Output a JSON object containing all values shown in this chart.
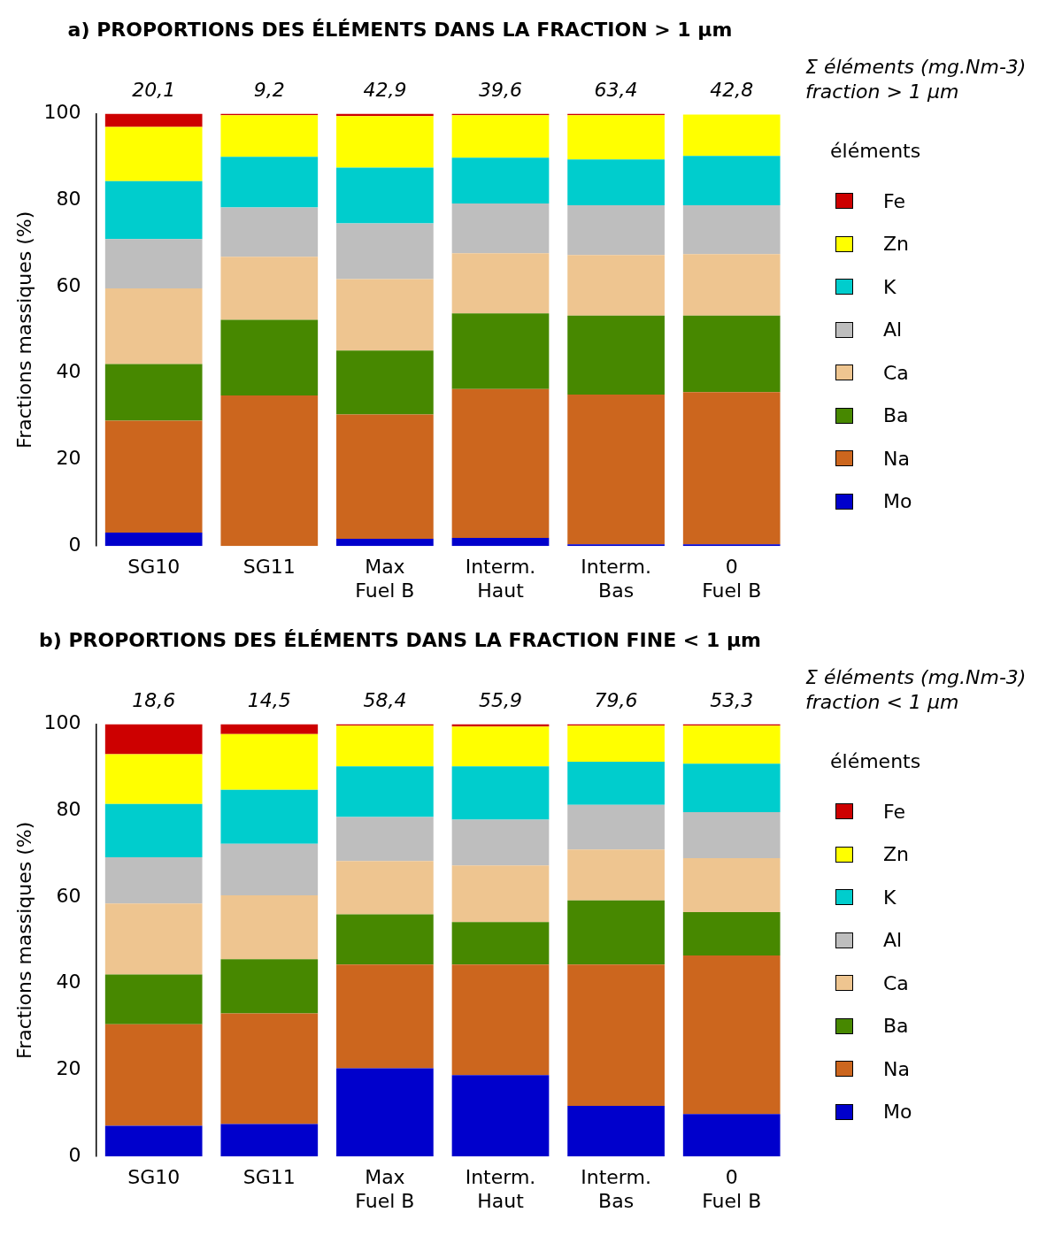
{
  "chart_data": [
    {
      "type": "bar",
      "stacked": true,
      "title": "a) PROPORTIONS DES ÉLÉMENTS DANS LA FRACTION > 1 µm",
      "ylabel": "Fractions massiques (%)",
      "categories": [
        "SG10",
        "SG11",
        "Max\nFuel B",
        "Interm.\nHaut",
        "Interm.\nBas",
        "0\nFuel B"
      ],
      "ylim": [
        0,
        100
      ],
      "yticks": [
        0,
        20,
        40,
        60,
        80,
        100
      ],
      "grid": false,
      "legend": "right",
      "legend_title": "éléments",
      "annotations": [
        "Σ éléments (mg.Nm-3)\nfraction > 1 µm",
        {
          "text": "20,1",
          "x": "SG10",
          "y": 100
        },
        {
          "text": "9,2",
          "x": "SG11",
          "y": 100
        },
        {
          "text": "42,9",
          "x": "Max\nFuel B",
          "y": 100
        },
        {
          "text": "39,6",
          "x": "Interm.\nHaut",
          "y": 100
        },
        {
          "text": "63,4",
          "x": "Interm.\nBas",
          "y": 100
        },
        {
          "text": "42,8",
          "x": "0\nFuel B",
          "y": 100
        }
      ],
      "series": [
        {
          "name": "Mo",
          "color": "#0000cc",
          "values": [
            3.1,
            0,
            1.7,
            1.9,
            0.4,
            0.4
          ]
        },
        {
          "name": "Na",
          "color": "#cc661e",
          "values": [
            25.9,
            34.8,
            28.7,
            34.4,
            34.6,
            35.2
          ]
        },
        {
          "name": "Ba",
          "color": "#478800",
          "values": [
            13.1,
            17.5,
            14.8,
            17.5,
            18.3,
            17.7
          ]
        },
        {
          "name": "Ca",
          "color": "#eec590",
          "values": [
            17.5,
            14.6,
            16.5,
            13.9,
            14.0,
            14.2
          ]
        },
        {
          "name": "Al",
          "color": "#bebebe",
          "values": [
            11.4,
            11.4,
            12.9,
            11.5,
            11.5,
            11.3
          ]
        },
        {
          "name": "K",
          "color": "#00cdcd",
          "values": [
            13.4,
            11.7,
            12.9,
            10.6,
            10.6,
            11.4
          ]
        },
        {
          "name": "Zn",
          "color": "#ffff00",
          "values": [
            12.5,
            9.6,
            11.9,
            9.8,
            10.2,
            9.6
          ]
        },
        {
          "name": "Fe",
          "color": "#cd0000",
          "values": [
            3.1,
            0.4,
            0.6,
            0.4,
            0.4,
            null
          ]
        }
      ]
    },
    {
      "type": "bar",
      "stacked": true,
      "title": "b) PROPORTIONS DES ÉLÉMENTS DANS LA FRACTION FINE < 1 µm",
      "ylabel": "Fractions massiques (%)",
      "categories": [
        "SG10",
        "SG11",
        "Max\nFuel B",
        "Interm.\nHaut",
        "Interm.\nBas",
        "0\nFuel B"
      ],
      "ylim": [
        0,
        100
      ],
      "yticks": [
        0,
        20,
        40,
        60,
        80,
        100
      ],
      "grid": false,
      "legend": "right",
      "legend_title": "éléments",
      "annotations": [
        "Σ éléments (mg.Nm-3)\nfraction < 1 µm",
        {
          "text": "18,6",
          "x": "SG10",
          "y": 100
        },
        {
          "text": "14,5",
          "x": "SG11",
          "y": 100
        },
        {
          "text": "58,4",
          "x": "Max\nFuel B",
          "y": 100
        },
        {
          "text": "55,9",
          "x": "Interm.\nHaut",
          "y": 100
        },
        {
          "text": "79,6",
          "x": "Interm.\nBas",
          "y": 100
        },
        {
          "text": "53,3",
          "x": "0\nFuel B",
          "y": 100
        }
      ],
      "series": [
        {
          "name": "Mo",
          "color": "#0000cc",
          "values": [
            7.1,
            7.5,
            20.4,
            18.8,
            11.7,
            9.8
          ]
        },
        {
          "name": "Na",
          "color": "#cc661e",
          "values": [
            23.5,
            25.6,
            24.0,
            25.6,
            32.7,
            36.7
          ]
        },
        {
          "name": "Ba",
          "color": "#478800",
          "values": [
            11.5,
            12.5,
            11.6,
            9.8,
            14.8,
            10.0
          ]
        },
        {
          "name": "Ca",
          "color": "#eec590",
          "values": [
            16.4,
            14.8,
            12.3,
            13.1,
            11.8,
            12.5
          ]
        },
        {
          "name": "Al",
          "color": "#bebebe",
          "values": [
            10.7,
            11.9,
            10.2,
            10.6,
            10.3,
            10.6
          ]
        },
        {
          "name": "K",
          "color": "#00cdcd",
          "values": [
            12.3,
            12.5,
            11.7,
            12.3,
            10.0,
            11.2
          ]
        },
        {
          "name": "Zn",
          "color": "#ffff00",
          "values": [
            11.5,
            12.9,
            9.4,
            9.2,
            8.3,
            8.8
          ]
        },
        {
          "name": "Fe",
          "color": "#cd0000",
          "values": [
            7.0,
            2.3,
            0.4,
            0.6,
            0.4,
            0.4
          ]
        }
      ]
    }
  ]
}
